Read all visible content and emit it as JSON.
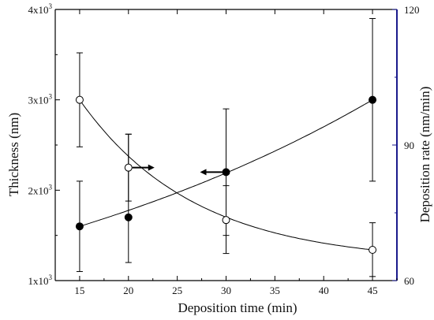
{
  "chart_data": {
    "type": "scatter",
    "xlabel": "Deposition time (min)",
    "ylabel_left": "Thickness (nm)",
    "ylabel_right": "Deposition rate (nm/min)",
    "x_ticks": [
      15,
      20,
      25,
      30,
      35,
      40,
      45
    ],
    "xlim": [
      12.5,
      47.5
    ],
    "ylim_left": [
      1000,
      4000
    ],
    "ylim_right": [
      60,
      120
    ],
    "y_left_ticks": [
      {
        "value": 1000,
        "base": "1x10",
        "exp": "3"
      },
      {
        "value": 2000,
        "base": "2x10",
        "exp": "3"
      },
      {
        "value": 3000,
        "base": "3x10",
        "exp": "3"
      },
      {
        "value": 4000,
        "base": "4x10",
        "exp": "3"
      }
    ],
    "y_right_ticks": [
      {
        "value": 60,
        "label": "60"
      },
      {
        "value": 90,
        "label": "90"
      },
      {
        "value": 120,
        "label": "120"
      }
    ],
    "right_axis_color": "#1a1a8c",
    "series": [
      {
        "axis": "left",
        "marker": "filled-circle",
        "x": [
          15,
          20,
          30,
          45
        ],
        "y": [
          1600,
          1700,
          2200,
          3000
        ],
        "err_low": [
          1100,
          1200,
          1500,
          2100
        ],
        "err_high": [
          2100,
          2620,
          2900,
          3900
        ],
        "fit": "exponential"
      },
      {
        "axis": "right",
        "marker": "open-circle",
        "x": [
          15,
          20,
          30,
          45
        ],
        "y": [
          100,
          85,
          73.4,
          66.8
        ],
        "err_low": [
          89.6,
          77.6,
          66,
          60.9
        ],
        "err_high": [
          110.4,
          92.4,
          81,
          72.8
        ],
        "fit": "exponential-decay"
      }
    ],
    "arrows": [
      {
        "at_x": 20,
        "at_y_right": 85,
        "direction": "right"
      },
      {
        "at_x": 30,
        "at_y_left": 2200,
        "direction": "left"
      }
    ]
  }
}
